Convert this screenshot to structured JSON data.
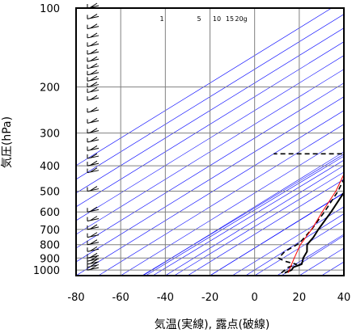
{
  "chart_data": {
    "type": "line",
    "title": "",
    "xlabel": "気温(実線), 露点(破線)",
    "ylabel": "気圧(hPa)",
    "xlim": [
      -80,
      40
    ],
    "ylim": [
      1050,
      100
    ],
    "y_scale": "log",
    "grid": true,
    "x_ticks": [
      -80,
      -60,
      -40,
      -20,
      0,
      20,
      40
    ],
    "y_ticks": [
      100,
      200,
      300,
      400,
      500,
      600,
      700,
      800,
      900,
      1000
    ],
    "mixing_ratio_labels": [
      "1",
      "5",
      "10",
      "15",
      "20g"
    ],
    "colors": {
      "temperature": "#000000",
      "dewpoint": "#000000",
      "parcel": "#ff0000",
      "grid": "#808080",
      "isotherms": "#0000ff"
    },
    "series": [
      {
        "values": [
          {
            "p": 1025,
            "t": 11.5
          },
          {
            "p": 1000,
            "t": 12.5
          },
          {
            "p": 975,
            "t": 11.2
          },
          {
            "p": 950,
            "t": 12.8
          },
          {
            "p": 925,
            "t": 11.0
          },
          {
            "p": 900,
            "t": 9.0
          },
          {
            "p": 850,
            "t": 6.0
          },
          {
            "p": 800,
            "t": 1.0
          },
          {
            "p": 780,
            "t": 0.0
          },
          {
            "p": 750,
            "t": -1.5
          },
          {
            "p": 700,
            "t": -5.0
          },
          {
            "p": 600,
            "t": -12.0
          },
          {
            "p": 500,
            "t": -21.0
          },
          {
            "p": 450,
            "t": -28.0
          },
          {
            "p": 400,
            "t": -35.0
          },
          {
            "p": 350,
            "t": -43.0
          },
          {
            "p": 300,
            "t": -50.0
          },
          {
            "p": 280,
            "t": -50.5
          },
          {
            "p": 250,
            "t": -49.5
          },
          {
            "p": 230,
            "t": -48.0
          },
          {
            "p": 215,
            "t": -50.5
          },
          {
            "p": 200,
            "t": -48.5
          },
          {
            "p": 185,
            "t": -50.0
          },
          {
            "p": 175,
            "t": -49.0
          },
          {
            "p": 160,
            "t": -53.0
          },
          {
            "p": 150,
            "t": -55.0
          },
          {
            "p": 140,
            "t": -56.0
          },
          {
            "p": 130,
            "t": -57.0
          },
          {
            "p": 120,
            "t": -58.5
          },
          {
            "p": 110,
            "t": -61.0
          },
          {
            "p": 100,
            "t": -62.0
          }
        ]
      },
      {
        "values": [
          {
            "p": 1025,
            "t": 10.0
          },
          {
            "p": 1000,
            "t": 9.5
          },
          {
            "p": 975,
            "t": 9.0
          },
          {
            "p": 950,
            "t": 10.5
          },
          {
            "p": 925,
            "t": 3.0
          },
          {
            "p": 900,
            "t": -2.0
          },
          {
            "p": 850,
            "t": -4.0
          },
          {
            "p": 800,
            "t": -3.5
          },
          {
            "p": 780,
            "t": -4.0
          },
          {
            "p": 700,
            "t": -8.0
          },
          {
            "p": 600,
            "t": -15.0
          },
          {
            "p": 500,
            "t": -24.0
          },
          {
            "p": 400,
            "t": -37.0
          },
          {
            "p": 360,
            "t": -40.0
          },
          {
            "p": 360,
            "t": -80.0
          }
        ]
      },
      {
        "values": [
          {
            "p": 1025,
            "t": 13.0
          },
          {
            "p": 900,
            "t": 5.0
          },
          {
            "p": 800,
            "t": -2.0
          },
          {
            "p": 700,
            "t": -8.0
          },
          {
            "p": 600,
            "t": -16.0
          },
          {
            "p": 500,
            "t": -25.0
          },
          {
            "p": 400,
            "t": -38.0
          },
          {
            "p": 300,
            "t": -54.0
          },
          {
            "p": 250,
            "t": -63.0
          },
          {
            "p": 200,
            "t": -75.0
          },
          {
            "p": 185,
            "t": -80.0
          }
        ]
      }
    ]
  }
}
